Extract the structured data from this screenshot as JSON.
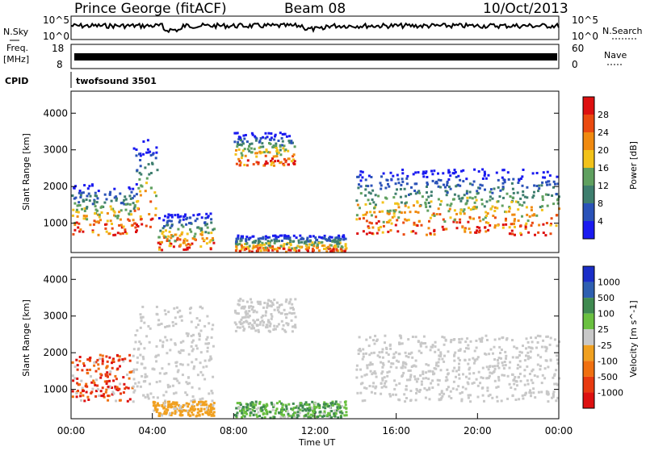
{
  "header": {
    "station": "Prince George (fitACF)",
    "beam": "Beam 08",
    "date": "10/Oct/2013"
  },
  "colors": {
    "power": [
      "#1a1af0",
      "#2a52b8",
      "#3e7e6e",
      "#5fa05f",
      "#f2c21a",
      "#f08a10",
      "#ea4a10",
      "#dd1010"
    ],
    "velocity": [
      "#1a2ec8",
      "#2e5fb0",
      "#3f8a50",
      "#6ac040",
      "#c8c8c8",
      "#f0a020",
      "#f07010",
      "#e83a10",
      "#dd1010"
    ]
  },
  "chart_data": [
    {
      "type": "line",
      "name": "summary-noise",
      "labels": {
        "left": "N.Sky",
        "right": "N.Search",
        "left_ticks": [
          "10^5",
          "10^0"
        ],
        "right_ticks": [
          "10^5",
          "10^0"
        ]
      },
      "approx_level": "near 10^5 throughout the day"
    },
    {
      "type": "line",
      "name": "summary-frequency",
      "labels": {
        "left_top": "Freq.",
        "left_unit": "[MHz]",
        "right": "Nave",
        "left_ticks": [
          "18",
          "8"
        ],
        "right_ticks": [
          "60",
          "0"
        ]
      },
      "approx_level": "near 11 MHz throughout the day"
    },
    {
      "type": "table",
      "name": "cpid",
      "label": "CPID",
      "value": "twofsound 3501"
    },
    {
      "type": "heatmap",
      "name": "power-panel",
      "ylabel": "Slant Range [km]",
      "ylim": [
        200,
        4600
      ],
      "yticks": [
        "1000",
        "2000",
        "3000",
        "4000"
      ],
      "colorbar": {
        "label": "Power [dB]",
        "ticks": [
          "4",
          "8",
          "12",
          "16",
          "20",
          "24",
          "28"
        ]
      },
      "patches": [
        {
          "t": [
            0,
            3.2
          ],
          "r": [
            700,
            2100
          ],
          "peak": "red near 900 km"
        },
        {
          "t": [
            3,
            4.2
          ],
          "r": [
            900,
            3300
          ],
          "peak": "blue-green"
        },
        {
          "t": [
            4.2,
            7
          ],
          "r": [
            300,
            1300
          ],
          "peak": "orange near 1000 km"
        },
        {
          "t": [
            8,
            11
          ],
          "r": [
            2600,
            3500
          ],
          "peak": "blue"
        },
        {
          "t": [
            8,
            13.5
          ],
          "r": [
            250,
            700
          ],
          "peak": "orange near 500 km"
        },
        {
          "t": [
            14,
            24
          ],
          "r": [
            700,
            2500
          ],
          "peak": "red near 900 km"
        }
      ]
    },
    {
      "type": "heatmap",
      "name": "velocity-panel",
      "ylabel": "Slant Range [km]",
      "ylim": [
        200,
        4600
      ],
      "yticks": [
        "1000",
        "2000",
        "3000",
        "4000"
      ],
      "xlabel": "Time UT",
      "xticks": [
        "00:00",
        "04:00",
        "08:00",
        "12:00",
        "16:00",
        "20:00",
        "00:00"
      ],
      "colorbar": {
        "label": "Velocity [m s^-1]",
        "ticks": [
          "1000",
          "500",
          "100",
          "25",
          "-25",
          "-100",
          "-500",
          "-1000"
        ]
      },
      "patches": [
        {
          "t": [
            0,
            3
          ],
          "r": [
            700,
            2000
          ],
          "peak": "red/orange (negative)"
        },
        {
          "t": [
            3,
            7
          ],
          "r": [
            700,
            3300
          ],
          "peak": "grey (near zero)"
        },
        {
          "t": [
            4,
            7
          ],
          "r": [
            300,
            700
          ],
          "peak": "orange"
        },
        {
          "t": [
            8,
            13.5
          ],
          "r": [
            250,
            700
          ],
          "peak": "green (positive)"
        },
        {
          "t": [
            8,
            11
          ],
          "r": [
            2600,
            3500
          ],
          "peak": "grey"
        },
        {
          "t": [
            14,
            24
          ],
          "r": [
            700,
            2500
          ],
          "peak": "grey (near zero)"
        }
      ]
    }
  ]
}
